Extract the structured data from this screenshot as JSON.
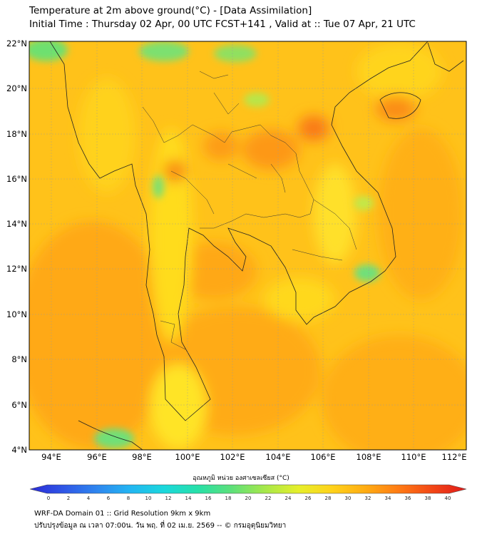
{
  "title_line1": "Temperature at 2m above ground(°C) - [Data Assimilation]",
  "title_line2": "Initial Time : Thursday 02 Apr, 00 UTC FCST+141 , Valid at :: Tue 07 Apr, 21 UTC",
  "lat_labels": [
    "22°N",
    "20°N",
    "18°N",
    "16°N",
    "14°N",
    "12°N",
    "10°N",
    "8°N",
    "6°N",
    "4°N"
  ],
  "lon_labels": [
    "94°E",
    "96°E",
    "98°E",
    "100°E",
    "102°E",
    "104°E",
    "106°E",
    "108°E",
    "110°E",
    "112°E"
  ],
  "colorbar": {
    "label": "อุณหภูมิ หน่วย องศาเซลเซียส (°C)",
    "ticks": [
      "0",
      "2",
      "4",
      "6",
      "8",
      "10",
      "12",
      "14",
      "16",
      "18",
      "20",
      "22",
      "24",
      "26",
      "28",
      "30",
      "32",
      "34",
      "36",
      "38",
      "40"
    ],
    "colors": [
      "#2b2bd6",
      "#2f56e6",
      "#2e86ef",
      "#22b6f2",
      "#1ad8dc",
      "#26e0a8",
      "#5de07a",
      "#a6e84a",
      "#e6ef2a",
      "#ffd21a",
      "#ffac12",
      "#ff7a14",
      "#f24616",
      "#e01a1a"
    ]
  },
  "footer_line1": "WRF-DA Domain 01 :: Grid Resolution 9km x 9km",
  "footer_line2": "ปรับปรุงข้อมูล ณ เวลา 07:00น. วัน พฤ. ที่ 02 เม.ย. 2569 -- © กรมอุตุนิยมวิทยา"
}
